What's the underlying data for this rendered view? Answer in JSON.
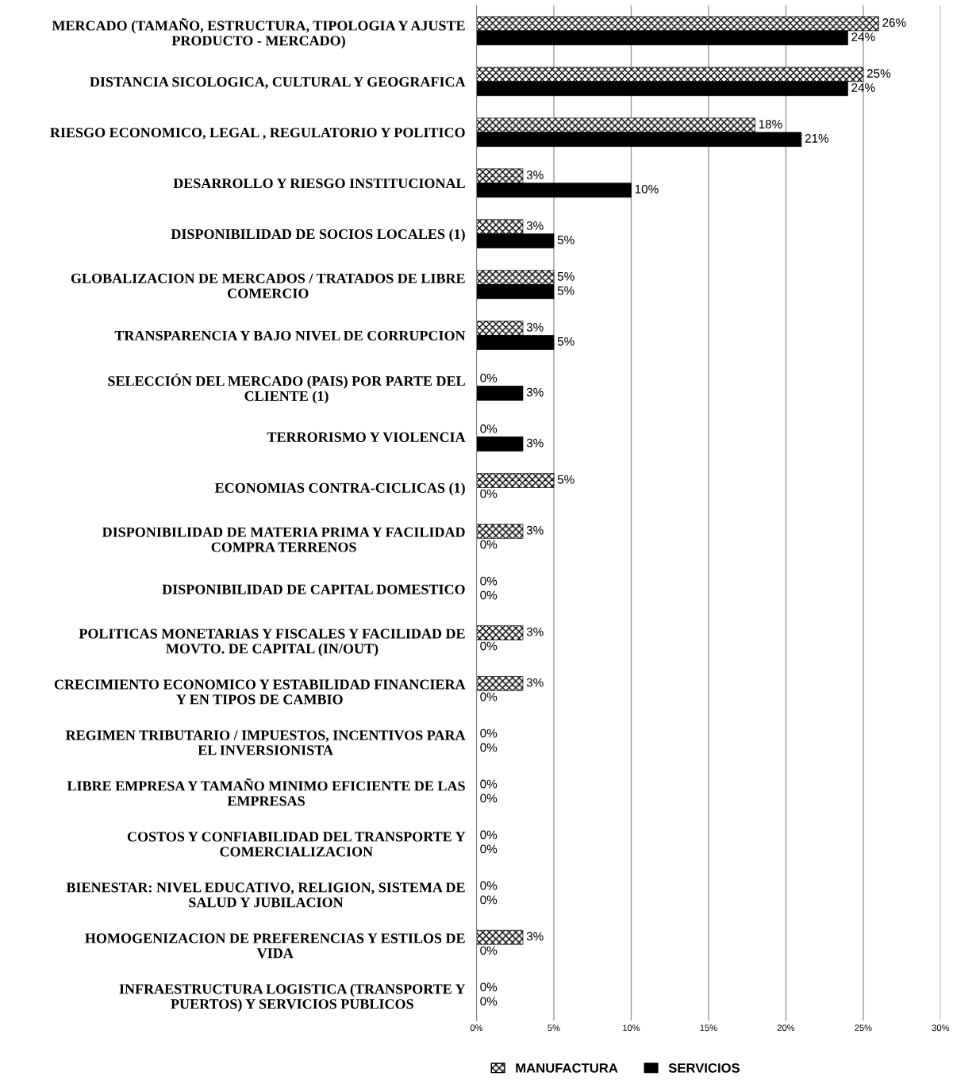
{
  "chart_data": {
    "type": "bar",
    "orientation": "horizontal",
    "categories": [
      "MERCADO (TAMAÑO, ESTRUCTURA, TIPOLOGIA Y AJUSTE\nPRODUCTO - MERCADO)",
      "DISTANCIA SICOLOGICA, CULTURAL Y GEOGRAFICA",
      "RIESGO ECONOMICO, LEGAL , REGULATORIO Y POLITICO",
      "DESARROLLO Y RIESGO INSTITUCIONAL",
      "DISPONIBILIDAD DE SOCIOS LOCALES (1)",
      "GLOBALIZACION DE MERCADOS / TRATADOS DE LIBRE\nCOMERCIO",
      "TRANSPARENCIA Y BAJO NIVEL DE CORRUPCION",
      "SELECCIÓN DEL MERCADO (PAIS) POR PARTE DEL\nCLIENTE (1)",
      "TERRORISMO Y VIOLENCIA",
      "ECONOMIAS CONTRA-CICLICAS (1)",
      "DISPONIBILIDAD DE MATERIA PRIMA Y FACILIDAD\nCOMPRA TERRENOS",
      "DISPONIBILIDAD DE CAPITAL DOMESTICO",
      "POLITICAS MONETARIAS Y FISCALES Y FACILIDAD DE\nMOVTO. DE CAPITAL (IN/OUT)",
      "CRECIMIENTO ECONOMICO Y ESTABILIDAD FINANCIERA\nY EN TIPOS DE CAMBIO",
      "REGIMEN TRIBUTARIO / IMPUESTOS, INCENTIVOS PARA\nEL INVERSIONISTA",
      "LIBRE EMPRESA Y TAMAÑO MINIMO EFICIENTE DE LAS\nEMPRESAS",
      "COSTOS Y CONFIABILIDAD DEL TRANSPORTE Y\nCOMERCIALIZACION",
      "BIENESTAR: NIVEL EDUCATIVO, RELIGION, SISTEMA DE\nSALUD Y JUBILACION",
      "HOMOGENIZACION DE PREFERENCIAS Y ESTILOS DE\nVIDA",
      "INFRAESTRUCTURA LOGISTICA (TRANSPORTE Y\nPUERTOS) Y SERVICIOS PUBLICOS"
    ],
    "series": [
      {
        "name": "MANUFACTURA",
        "color": "#000000",
        "values": [
          26,
          25,
          18,
          3,
          3,
          5,
          3,
          0,
          0,
          5,
          3,
          0,
          3,
          3,
          0,
          0,
          0,
          0,
          3,
          0
        ],
        "value_labels": [
          "26%",
          "25%",
          "18%",
          "3%",
          "3%",
          "5%",
          "3%",
          "0%",
          "0%",
          "5%",
          "3%",
          "0%",
          "3%",
          "3%",
          "0%",
          "0%",
          "0%",
          "0%",
          "3%",
          "0%"
        ]
      },
      {
        "name": "SERVICIOS",
        "color": "#000000",
        "values": [
          24,
          24,
          21,
          10,
          5,
          5,
          5,
          3,
          3,
          0,
          0,
          0,
          0,
          0,
          0,
          0,
          0,
          0,
          0,
          0
        ],
        "value_labels": [
          "24%",
          "24%",
          "21%",
          "10%",
          "5%",
          "5%",
          "5%",
          "3%",
          "3%",
          "0%",
          "0%",
          "0%",
          "0%",
          "0%",
          "0%",
          "0%",
          "0%",
          "0%",
          "0%",
          "0%"
        ]
      }
    ],
    "xlim": [
      0,
      30
    ],
    "xticks": [
      {
        "value": 0,
        "label": "0%"
      },
      {
        "value": 5,
        "label": "5%"
      },
      {
        "value": 10,
        "label": "10%"
      },
      {
        "value": 15,
        "label": "15%"
      },
      {
        "value": 20,
        "label": "20%"
      },
      {
        "value": 25,
        "label": "25%"
      },
      {
        "value": 30,
        "label": "30%"
      }
    ],
    "grid": "x",
    "legend": "bottom"
  }
}
